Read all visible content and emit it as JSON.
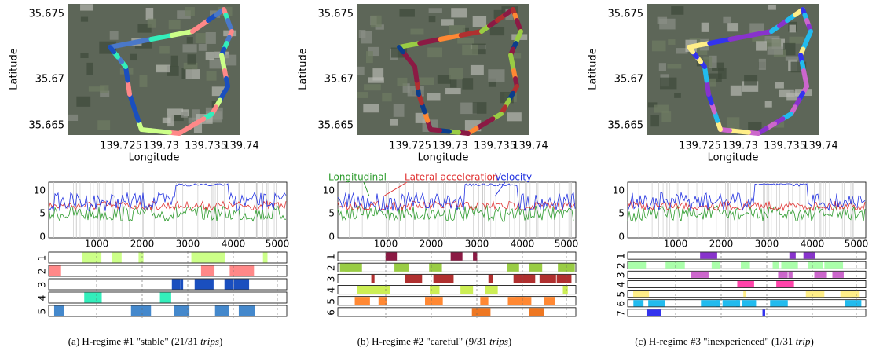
{
  "panels": [
    {
      "map": {
        "ylabel": "Latitude",
        "xlabel": "Longitude",
        "yticks": [
          "35.675",
          "35.67",
          "35.665"
        ],
        "xticks": [
          "139.725",
          "139.73",
          "139.735",
          "139.74"
        ]
      },
      "timeseries": {
        "yticks": [
          "10",
          "5",
          "0"
        ],
        "xticks": [
          "1000",
          "2000",
          "3000",
          "4000",
          "5000"
        ]
      },
      "regimes": [
        "1",
        "2",
        "3",
        "4",
        "5"
      ],
      "caption": {
        "prefix": "(a) H-regime #1 \"stable\" (21/31 ",
        "emphasis": "trips",
        "suffix": ")"
      }
    },
    {
      "map": {
        "ylabel": "Latitude",
        "xlabel": "Longitude",
        "yticks": [
          "35.675",
          "35.67",
          "35.665"
        ],
        "xticks": [
          "139.725",
          "139.73",
          "139.735",
          "139.74"
        ]
      },
      "timeseries": {
        "yticks": [
          "10",
          "5",
          "0"
        ],
        "xticks": [
          "1000",
          "2000",
          "3000",
          "4000",
          "5000"
        ],
        "annotations": [
          "Longitudinal",
          "Lateral acceleration",
          "Velocity"
        ]
      },
      "regimes": [
        "1",
        "2",
        "3",
        "4",
        "5",
        "6"
      ],
      "caption": {
        "prefix": "(b) H-regime #2 \"careful\" (9/31 ",
        "emphasis": "trips",
        "suffix": ")"
      }
    },
    {
      "map": {
        "ylabel": "Latitude",
        "xlabel": "Longitude",
        "yticks": [
          "35.675",
          "35.67",
          "35.665"
        ],
        "xticks": [
          "139.725",
          "139.73",
          "139.735",
          "139.74"
        ]
      },
      "timeseries": {
        "yticks": [
          "10",
          "5",
          "0"
        ],
        "xticks": [
          "1000",
          "2000",
          "3000",
          "4000",
          "5000"
        ]
      },
      "regimes": [
        "1",
        "2",
        "3",
        "4",
        "5",
        "6",
        "7"
      ],
      "caption": {
        "prefix": "(c) H-regime #3 \"inexperienced\" (1/31 ",
        "emphasis": "trip",
        "suffix": ")"
      }
    }
  ]
}
